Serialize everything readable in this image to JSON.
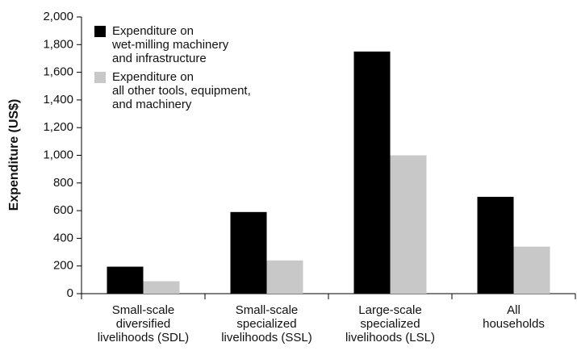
{
  "chart_data": {
    "type": "bar",
    "y_label": "Expenditure (US$)",
    "categories": [
      "Small-scale\ndiversified\nlivelihoods (SDL)",
      "Small-scale\nspecialized\nlivelihoods (SSL)",
      "Large-scale\nspecialized\nlivelihoods (LSL)",
      "All\nhouseholds"
    ],
    "series": [
      {
        "name": "Expenditure on\nwet-milling machinery\nand infrastructure",
        "color": "#000000",
        "values": [
          195,
          590,
          1750,
          700
        ]
      },
      {
        "name": "Expenditure on\nall other tools, equipment,\nand machinery",
        "color": "#c8c8c8",
        "values": [
          90,
          240,
          1000,
          340
        ]
      }
    ],
    "ylim": [
      0,
      2000
    ],
    "yticks": [
      0,
      200,
      400,
      600,
      800,
      {
        "value": 1000,
        "label": "1,000"
      },
      {
        "value": 1200,
        "label": "1,200"
      },
      {
        "value": 1400,
        "label": "1,400"
      },
      {
        "value": 1600,
        "label": "1,600"
      },
      {
        "value": 1800,
        "label": "1,800"
      },
      {
        "value": 2000,
        "label": "2,000"
      }
    ],
    "legend": "upper-left"
  }
}
